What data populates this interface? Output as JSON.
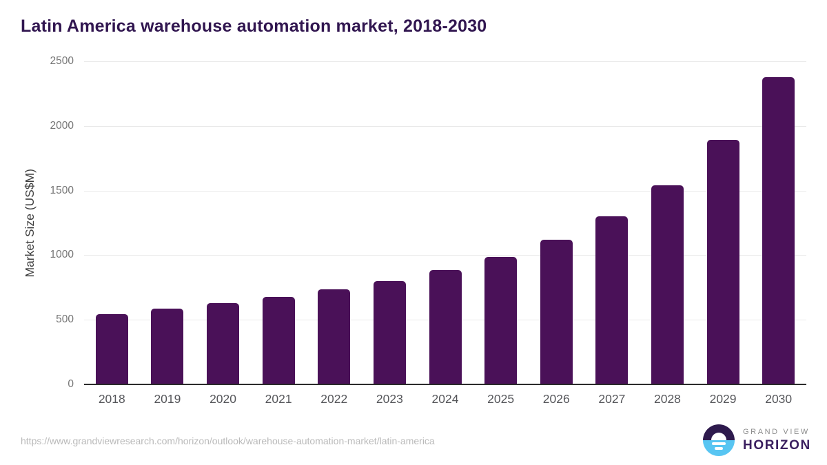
{
  "chart_data": {
    "type": "bar",
    "title": "Latin America warehouse automation market, 2018-2030",
    "categories": [
      "2018",
      "2019",
      "2020",
      "2021",
      "2022",
      "2023",
      "2024",
      "2025",
      "2026",
      "2027",
      "2028",
      "2029",
      "2030"
    ],
    "values": [
      545,
      585,
      628,
      675,
      735,
      800,
      885,
      985,
      1120,
      1300,
      1540,
      1890,
      2380
    ],
    "xlabel": "",
    "ylabel": "Market Size (US$M)",
    "ylim": [
      0,
      2500
    ],
    "yticks": [
      0,
      500,
      1000,
      1500,
      2000,
      2500
    ],
    "grid": true,
    "legend_position": "none",
    "bar_color": "#4a1158"
  },
  "footer": {
    "source_url": "https://www.grandviewresearch.com/horizon/outlook/warehouse-automation-market/latin-america",
    "logo": {
      "brand_top": "GRAND VIEW",
      "brand_bottom": "HORIZON"
    }
  },
  "colors": {
    "title_text": "#311650",
    "bar": "#4a1158",
    "axis_line": "#2b2b2b",
    "gridline": "#e8e8e8",
    "y_tick_text": "#757575",
    "x_tick_text": "#55565a",
    "y_axis_title_text": "#404040",
    "source_text": "#b9b9b9",
    "logo_purple": "#2e1a4d",
    "logo_blue": "#58c5f2",
    "brand_gray": "#8b8b8b",
    "brand_purple": "#3b2060"
  }
}
